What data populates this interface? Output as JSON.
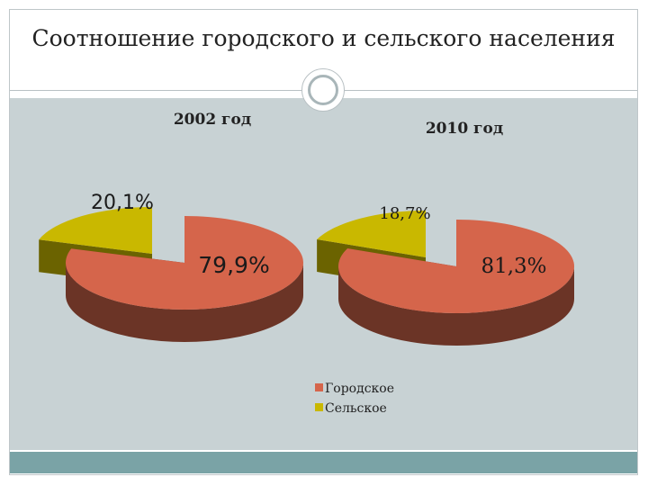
{
  "slide": {
    "title": "Соотношение городского и сельского населения"
  },
  "colors": {
    "urban": "#d5654b",
    "urban_side": "#6b3426",
    "rural": "#c9b800",
    "rural_side": "#6b6300",
    "content_bg": "#c8d2d4",
    "bottom_bar": "#7aa3a6"
  },
  "chart_data": [
    {
      "type": "pie",
      "title": "2002 год",
      "slices": [
        {
          "name": "Городское",
          "value": 79.9,
          "label": "79,9%"
        },
        {
          "name": "Сельское",
          "value": 20.1,
          "label": "20,1%"
        }
      ],
      "exploded": true
    },
    {
      "type": "pie",
      "title": "2010 год",
      "slices": [
        {
          "name": "Городское",
          "value": 81.3,
          "label": "81,3%"
        },
        {
          "name": "Сельское",
          "value": 18.7,
          "label": "18,7%"
        }
      ],
      "exploded": true
    }
  ],
  "legend": {
    "placement": "bottom-center",
    "entries": [
      "Городское",
      "Сельское"
    ]
  }
}
